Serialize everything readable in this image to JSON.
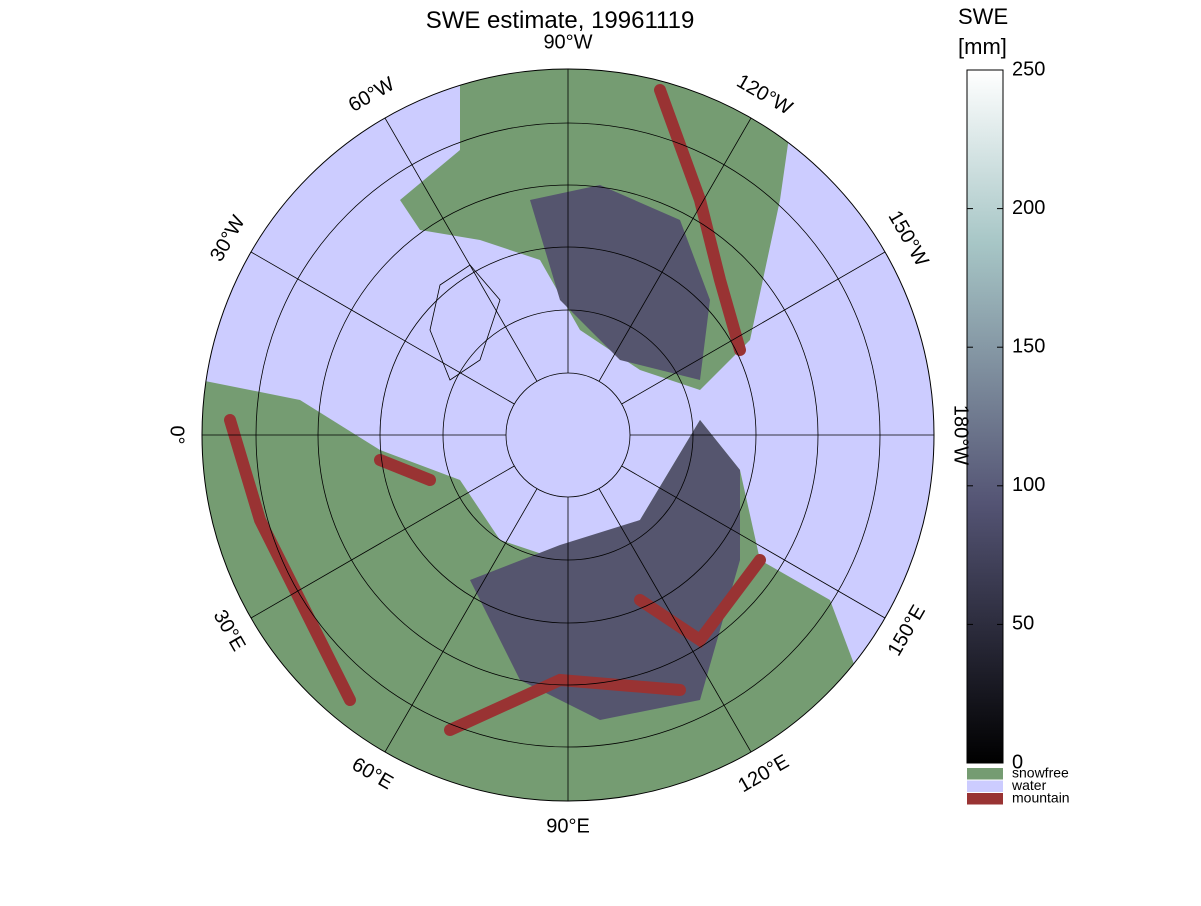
{
  "title": "SWE estimate, 19961119",
  "colorbar": {
    "label": [
      "SWE",
      "[mm]"
    ],
    "ticks": [
      0,
      50,
      100,
      150,
      200,
      250
    ],
    "lim": [
      0,
      250
    ]
  },
  "legend": [
    {
      "name": "snowfree",
      "color": "#759c72"
    },
    {
      "name": "water",
      "color": "#ccccff"
    },
    {
      "name": "mountain",
      "color": "#993333"
    }
  ],
  "longitude_labels": [
    {
      "lon": 0,
      "label": "0°"
    },
    {
      "lon": 30,
      "label": "30°E"
    },
    {
      "lon": 60,
      "label": "60°E"
    },
    {
      "lon": 90,
      "label": "90°E"
    },
    {
      "lon": 120,
      "label": "120°E"
    },
    {
      "lon": 150,
      "label": "150°E"
    },
    {
      "lon": 180,
      "label": "180°W"
    },
    {
      "lon": -150,
      "label": "150°W"
    },
    {
      "lon": -120,
      "label": "120°W"
    },
    {
      "lon": -90,
      "label": "90°W"
    },
    {
      "lon": -60,
      "label": "60°W"
    },
    {
      "lon": -30,
      "label": "30°W"
    }
  ]
}
